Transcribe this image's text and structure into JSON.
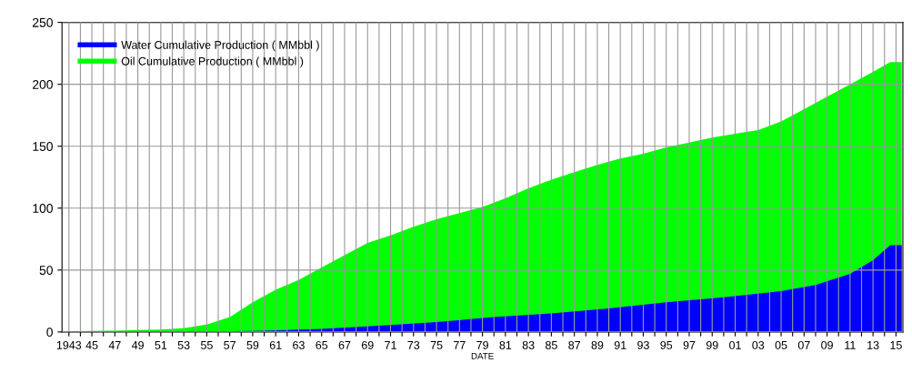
{
  "chart_data": {
    "type": "area",
    "xlabel": "DATE",
    "xlim": [
      1942.4,
      2015.6
    ],
    "ylim": [
      0,
      250
    ],
    "yticks": [
      0,
      50,
      100,
      150,
      200,
      250
    ],
    "xticks": [
      {
        "value": 1943,
        "label": "1943"
      },
      {
        "value": 1944,
        "label": null
      },
      {
        "value": 1945,
        "label": "45"
      },
      {
        "value": 1946,
        "label": null
      },
      {
        "value": 1947,
        "label": "47"
      },
      {
        "value": 1948,
        "label": null
      },
      {
        "value": 1949,
        "label": "49"
      },
      {
        "value": 1950,
        "label": null
      },
      {
        "value": 1951,
        "label": "51"
      },
      {
        "value": 1952,
        "label": null
      },
      {
        "value": 1953,
        "label": "53"
      },
      {
        "value": 1954,
        "label": null
      },
      {
        "value": 1955,
        "label": "55"
      },
      {
        "value": 1956,
        "label": null
      },
      {
        "value": 1957,
        "label": "57"
      },
      {
        "value": 1958,
        "label": null
      },
      {
        "value": 1959,
        "label": "59"
      },
      {
        "value": 1960,
        "label": null
      },
      {
        "value": 1961,
        "label": "61"
      },
      {
        "value": 1962,
        "label": null
      },
      {
        "value": 1963,
        "label": "63"
      },
      {
        "value": 1964,
        "label": null
      },
      {
        "value": 1965,
        "label": "65"
      },
      {
        "value": 1966,
        "label": null
      },
      {
        "value": 1967,
        "label": "67"
      },
      {
        "value": 1968,
        "label": null
      },
      {
        "value": 1969,
        "label": "69"
      },
      {
        "value": 1970,
        "label": null
      },
      {
        "value": 1971,
        "label": "71"
      },
      {
        "value": 1972,
        "label": null
      },
      {
        "value": 1973,
        "label": "73"
      },
      {
        "value": 1974,
        "label": null
      },
      {
        "value": 1975,
        "label": "75"
      },
      {
        "value": 1976,
        "label": null
      },
      {
        "value": 1977,
        "label": "77"
      },
      {
        "value": 1978,
        "label": null
      },
      {
        "value": 1979,
        "label": "79"
      },
      {
        "value": 1980,
        "label": null
      },
      {
        "value": 1981,
        "label": "81"
      },
      {
        "value": 1982,
        "label": null
      },
      {
        "value": 1983,
        "label": "83"
      },
      {
        "value": 1984,
        "label": null
      },
      {
        "value": 1985,
        "label": "85"
      },
      {
        "value": 1986,
        "label": null
      },
      {
        "value": 1987,
        "label": "87"
      },
      {
        "value": 1988,
        "label": null
      },
      {
        "value": 1989,
        "label": "89"
      },
      {
        "value": 1990,
        "label": null
      },
      {
        "value": 1991,
        "label": "91"
      },
      {
        "value": 1992,
        "label": null
      },
      {
        "value": 1993,
        "label": "93"
      },
      {
        "value": 1994,
        "label": null
      },
      {
        "value": 1995,
        "label": "95"
      },
      {
        "value": 1996,
        "label": null
      },
      {
        "value": 1997,
        "label": "97"
      },
      {
        "value": 1998,
        "label": null
      },
      {
        "value": 1999,
        "label": "99"
      },
      {
        "value": 2000,
        "label": null
      },
      {
        "value": 2001,
        "label": "01"
      },
      {
        "value": 2002,
        "label": null
      },
      {
        "value": 2003,
        "label": "03"
      },
      {
        "value": 2004,
        "label": null
      },
      {
        "value": 2005,
        "label": "05"
      },
      {
        "value": 2006,
        "label": null
      },
      {
        "value": 2007,
        "label": "07"
      },
      {
        "value": 2008,
        "label": null
      },
      {
        "value": 2009,
        "label": "09"
      },
      {
        "value": 2010,
        "label": null
      },
      {
        "value": 2011,
        "label": "11"
      },
      {
        "value": 2012,
        "label": null
      },
      {
        "value": 2013,
        "label": "13"
      },
      {
        "value": 2014,
        "label": null
      },
      {
        "value": 2015,
        "label": "15"
      }
    ],
    "grid": true,
    "legend": "top left",
    "series": [
      {
        "name": "Oil Cumulative Production ( MMbbl )",
        "color": "#00ff00",
        "x": [
          1943,
          1945,
          1947,
          1949,
          1951,
          1953,
          1955,
          1957,
          1959,
          1961,
          1963,
          1965,
          1967,
          1969,
          1971,
          1973,
          1975,
          1977,
          1979,
          1981,
          1983,
          1985,
          1987,
          1989,
          1991,
          1993,
          1995,
          1997,
          1999,
          2001,
          2003,
          2005,
          2007,
          2009,
          2011,
          2013,
          2014.5,
          2015.5
        ],
        "values": [
          0.5,
          0.8,
          1,
          1.5,
          2,
          3,
          6,
          12,
          24,
          34,
          42,
          52,
          62,
          72,
          78,
          85,
          91,
          96,
          101,
          108,
          116,
          123,
          129,
          135,
          140,
          144,
          149,
          153,
          157,
          160,
          163,
          170,
          180,
          190,
          200,
          210,
          218,
          218
        ]
      },
      {
        "name": "Water Cumulative Production ( MMbbl )",
        "color": "#0000ff",
        "x": [
          1943,
          1955,
          1960,
          1965,
          1970,
          1975,
          1980,
          1985,
          1990,
          1995,
          2000,
          2005,
          2008,
          2011,
          2013,
          2014.5,
          2015.5
        ],
        "values": [
          0.3,
          0.5,
          1,
          2.5,
          5,
          8,
          12,
          15,
          19,
          24,
          28,
          33,
          38,
          47,
          58,
          70,
          70
        ]
      }
    ]
  }
}
